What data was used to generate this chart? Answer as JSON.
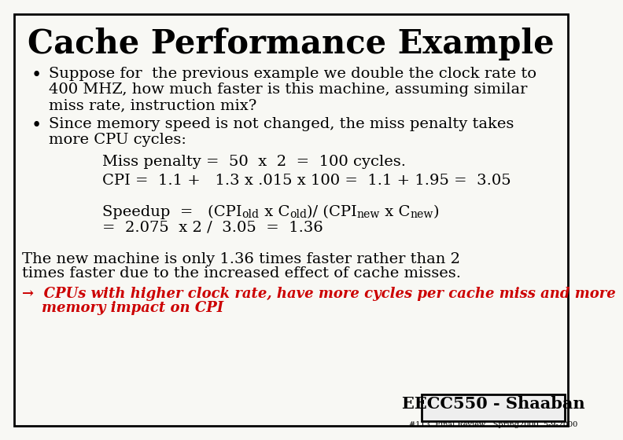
{
  "title": "Cache Performance Example",
  "bg_color": "#f8f8f4",
  "border_color": "#000000",
  "text_color": "#000000",
  "arrow_color": "#cc0000",
  "bullet1_line1": "Suppose for  the previous example we double the clock rate to",
  "bullet1_line2": "400 MHZ, how much faster is this machine, assuming similar",
  "bullet1_line3": "miss rate, instruction mix?",
  "bullet2_line1": "Since memory speed is not changed, the miss penalty takes",
  "bullet2_line2": "more CPU cycles:",
  "miss_penalty": "Miss penalty =  50  x  2  =  100 cycles.",
  "cpi_line": "CPI =  1.1 +   1.3 x .015 x 100 =  1.1 + 1.95 =  3.05",
  "speedup_line2": "=  2.075  x 2 /  3.05  =  1.36",
  "conclusion_line1": "The new machine is only 1.36 times faster rather than 2",
  "conclusion_line2": "times faster due to the increased effect of cache misses.",
  "arrow_text": "→  CPUs with higher clock rate, have more cycles per cache miss and more",
  "arrow_text2": "    memory impact on CPI",
  "footer_box": "EECC550 - Shaaban",
  "footer_sub": "#113  Final Review   Spring2000  5-9-2000",
  "speedup_parts": [
    [
      "Speedup  =   (CPI",
      false
    ],
    [
      "old",
      true
    ],
    [
      " x C",
      false
    ],
    [
      "old",
      true
    ],
    [
      ")/ (CPI",
      false
    ],
    [
      "new",
      true
    ],
    [
      " x C",
      false
    ],
    [
      "new",
      true
    ],
    [
      ")",
      false
    ]
  ]
}
